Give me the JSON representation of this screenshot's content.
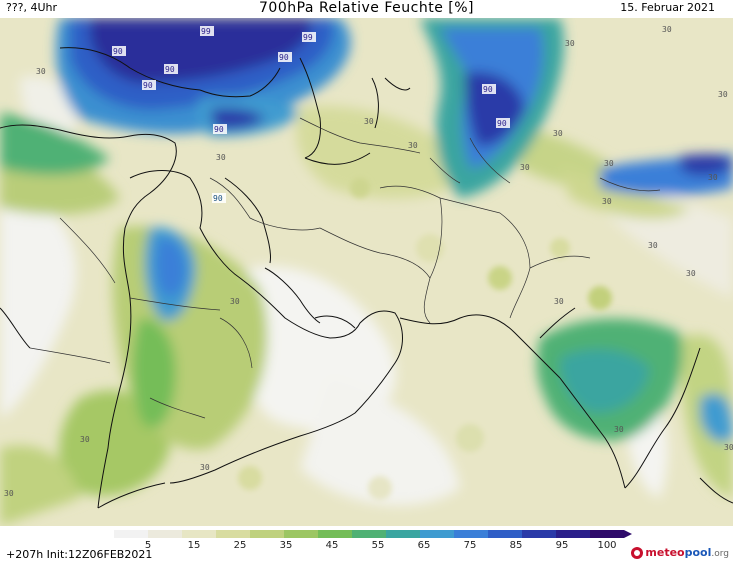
{
  "header": {
    "left": "???, 4Uhr",
    "title": "700hPa Relative Feuchte [%]",
    "date": "15. Februar 2021"
  },
  "map": {
    "contour_labels": [
      {
        "text": "90"
      },
      {
        "text": "90"
      },
      {
        "text": "99"
      },
      {
        "text": "90"
      },
      {
        "text": "90"
      },
      {
        "text": "99"
      },
      {
        "text": "90"
      },
      {
        "text": "90"
      },
      {
        "text": "90"
      },
      {
        "text": "90"
      },
      {
        "text": "30"
      },
      {
        "text": "30"
      },
      {
        "text": "30"
      },
      {
        "text": "30"
      },
      {
        "text": "30"
      },
      {
        "text": "30"
      },
      {
        "text": "30"
      },
      {
        "text": "30"
      },
      {
        "text": "30"
      },
      {
        "text": "30"
      },
      {
        "text": "30"
      },
      {
        "text": "30"
      },
      {
        "text": "30"
      },
      {
        "text": "30"
      },
      {
        "text": "30"
      },
      {
        "text": "30"
      },
      {
        "text": "30"
      },
      {
        "text": "30"
      },
      {
        "text": "30"
      },
      {
        "text": "30"
      },
      {
        "text": "30"
      }
    ]
  },
  "colorbar": {
    "ticks": [
      "5",
      "15",
      "25",
      "35",
      "45",
      "55",
      "65",
      "75",
      "85",
      "95",
      "100"
    ],
    "colors": [
      "#f2f2f2",
      "#eceadd",
      "#e7e6c4",
      "#d8dca0",
      "#bfd17e",
      "#9cc663",
      "#74bd58",
      "#4fb174",
      "#3aa5a0",
      "#3f9bd0",
      "#3b7fd8",
      "#2f5ec6",
      "#2a3aa8",
      "#2a1f8a",
      "#2e0a6a"
    ]
  },
  "footer": {
    "run_info": "+207h  Init:12Z06FEB2021",
    "brand_prefix": "meteo",
    "brand_mid": "pool",
    "brand_suffix": ".org"
  }
}
